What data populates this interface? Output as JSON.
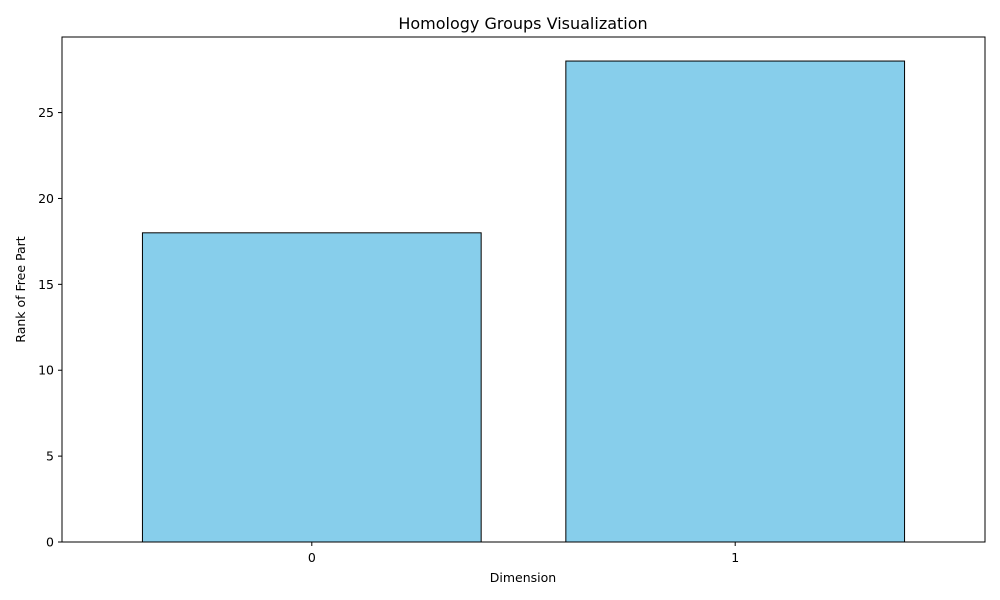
{
  "chart_data": {
    "type": "bar",
    "title": "Homology Groups Visualization",
    "xlabel": "Dimension",
    "ylabel": "Rank of Free Part",
    "categories": [
      "0",
      "1"
    ],
    "values": [
      18,
      28
    ],
    "ylim": [
      0,
      29.4
    ],
    "yticks": [
      0,
      5,
      10,
      15,
      20,
      25
    ],
    "grid": false,
    "legend": "none",
    "bar_color": "#87ceeb",
    "bar_edge_color": "#000000"
  }
}
